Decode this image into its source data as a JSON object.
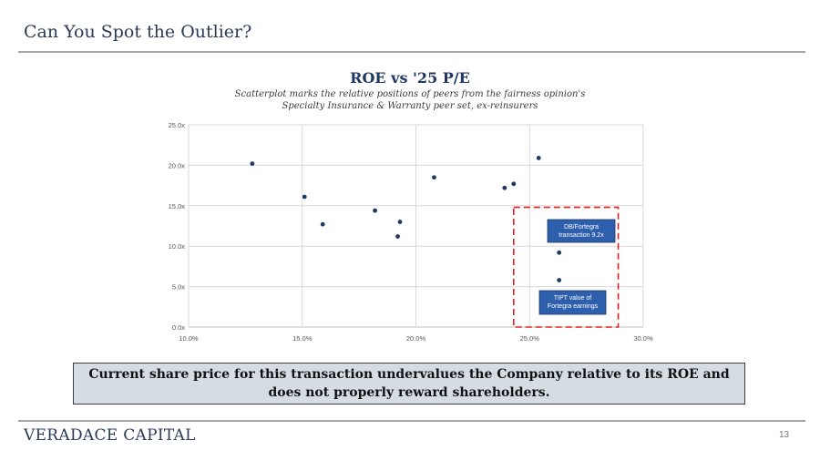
{
  "slide": {
    "title": "Can You Spot the Outlier?",
    "callout": "Current share price for this transaction undervalues the Company relative to its ROE and does not properly reward shareholders.",
    "footer_brand": "VERADACE CAPITAL",
    "page_number": "13"
  },
  "chart_data": {
    "type": "scatter",
    "title": "ROE vs '25 P/E",
    "subtitle": "Scatterplot marks the relative positions of peers from the fairness opinion's Specialty Insurance & Warranty peer set, ex-reinsurers",
    "subtitle_lines": [
      "Scatterplot marks the relative positions of peers from the fairness opinion's",
      "Specialty Insurance & Warranty peer set, ex-reinsurers"
    ],
    "xlabel": "",
    "ylabel": "",
    "xlim": [
      10.0,
      30.0
    ],
    "ylim": [
      0.0,
      25.0
    ],
    "x_ticks": [
      10,
      15,
      20,
      25,
      30
    ],
    "y_ticks": [
      0,
      5,
      10,
      15,
      20,
      25
    ],
    "x_tick_labels": [
      "10.0%",
      "15.0%",
      "20.0%",
      "25.0%",
      "30.0%"
    ],
    "y_tick_labels": [
      "0.0x",
      "5.0x",
      "10.0x",
      "15.0x",
      "20.0x",
      "25.0x"
    ],
    "grid": true,
    "marker_color": "#1f3864",
    "series": [
      {
        "points": [
          {
            "x": 12.8,
            "y": 20.2
          },
          {
            "x": 15.1,
            "y": 16.1
          },
          {
            "x": 15.9,
            "y": 12.7
          },
          {
            "x": 18.2,
            "y": 14.4
          },
          {
            "x": 19.2,
            "y": 11.2
          },
          {
            "x": 19.3,
            "y": 13.0
          },
          {
            "x": 20.8,
            "y": 18.5
          },
          {
            "x": 23.9,
            "y": 17.2
          },
          {
            "x": 24.3,
            "y": 17.7
          },
          {
            "x": 25.4,
            "y": 20.9
          },
          {
            "x": 26.3,
            "y": 9.2
          },
          {
            "x": 26.3,
            "y": 5.8
          }
        ]
      }
    ],
    "annotations": [
      {
        "lines": [
          "DB/Fortegra",
          "transaction 9.2x"
        ],
        "color": "#2e5fad"
      },
      {
        "lines": [
          "TIPT value of",
          "Fortegra earnings"
        ],
        "color": "#2e5fad"
      }
    ],
    "highlight_box": {
      "x_range": [
        24.3,
        28.9
      ],
      "y_range": [
        0.0,
        14.8
      ],
      "color": "#e02020"
    }
  }
}
